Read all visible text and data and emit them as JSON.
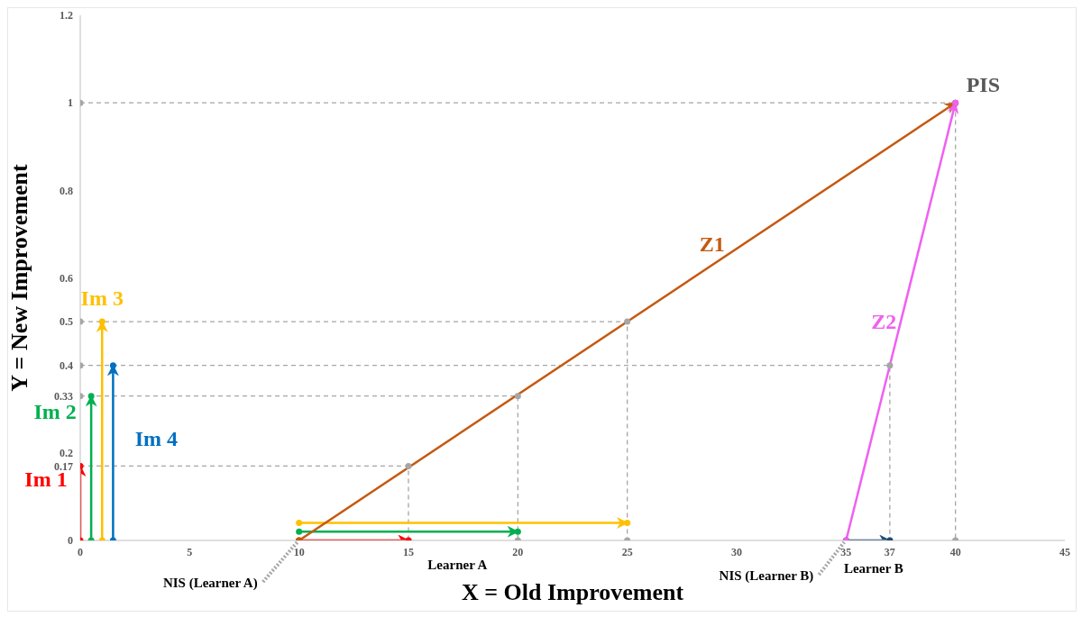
{
  "chart_data": {
    "type": "line",
    "xlabel": "X = Old Improvement",
    "ylabel": "Y = New Improvement",
    "xlim": [
      0,
      45
    ],
    "xticks": [
      0,
      5,
      10,
      15,
      20,
      25,
      30,
      35,
      37,
      40,
      45
    ],
    "ylim": [
      0,
      1.2
    ],
    "yticks": [
      0,
      0.17,
      0.2,
      0.33,
      0.4,
      0.5,
      0.6,
      0.8,
      1,
      1.2
    ],
    "marker": "circle",
    "line_style": "solid",
    "series": [
      {
        "color": "#a6a6a6",
        "line_style": "dashed",
        "x": [
          0,
          40,
          40
        ],
        "values": [
          1,
          1,
          0
        ]
      },
      {
        "color": "#a6a6a6",
        "line_style": "dashed",
        "x": [
          0,
          25,
          25
        ],
        "values": [
          0.5,
          0.5,
          0
        ]
      },
      {
        "color": "#a6a6a6",
        "line_style": "dashed",
        "x": [
          0,
          37,
          37
        ],
        "values": [
          0.4,
          0.4,
          0
        ]
      },
      {
        "color": "#a6a6a6",
        "line_style": "dashed",
        "x": [
          0,
          20,
          20
        ],
        "values": [
          0.33,
          0.33,
          0
        ]
      },
      {
        "color": "#a6a6a6",
        "line_style": "dashed",
        "x": [
          0,
          15,
          15
        ],
        "values": [
          0.17,
          0.17,
          0
        ]
      },
      {
        "name": "Im 1",
        "color": "#ff0000",
        "x": [
          0,
          0
        ],
        "values": [
          0,
          0.17
        ]
      },
      {
        "name": "Im 2",
        "color": "#00b050",
        "x": [
          0.5,
          0.5
        ],
        "values": [
          0,
          0.33
        ]
      },
      {
        "name": "Im 3",
        "color": "#ffc000",
        "x": [
          1,
          1
        ],
        "values": [
          0,
          0.5
        ]
      },
      {
        "name": "Im 4",
        "color": "#0070c0",
        "x": [
          1.5,
          1.5
        ],
        "values": [
          0,
          0.4
        ]
      },
      {
        "color": "#ff0000",
        "x": [
          10,
          15
        ],
        "values": [
          0,
          0
        ]
      },
      {
        "color": "#00b050",
        "x": [
          10,
          20
        ],
        "values": [
          0.02,
          0.02
        ]
      },
      {
        "color": "#ffc000",
        "x": [
          10,
          25
        ],
        "values": [
          0.04,
          0.04
        ]
      },
      {
        "color": "#1f4e79",
        "x": [
          35,
          37
        ],
        "values": [
          0,
          0
        ]
      },
      {
        "name": "Z1",
        "color": "#c55a11",
        "x": [
          10,
          40
        ],
        "values": [
          0,
          1
        ]
      },
      {
        "name": "Z2",
        "color": "#f060f0",
        "x": [
          35,
          40
        ],
        "values": [
          0,
          1
        ]
      }
    ],
    "annotations": [
      {
        "text": "PIS",
        "x": 40,
        "y": 1
      },
      {
        "text": "Learner A",
        "x": 20,
        "y": 0
      },
      {
        "text": "Learner B",
        "x": 37,
        "y": 0
      },
      {
        "text": "NIS (Learner A)",
        "x": 10,
        "y": 0
      },
      {
        "text": "NIS (Learner B)",
        "x": 35,
        "y": 0
      }
    ]
  }
}
